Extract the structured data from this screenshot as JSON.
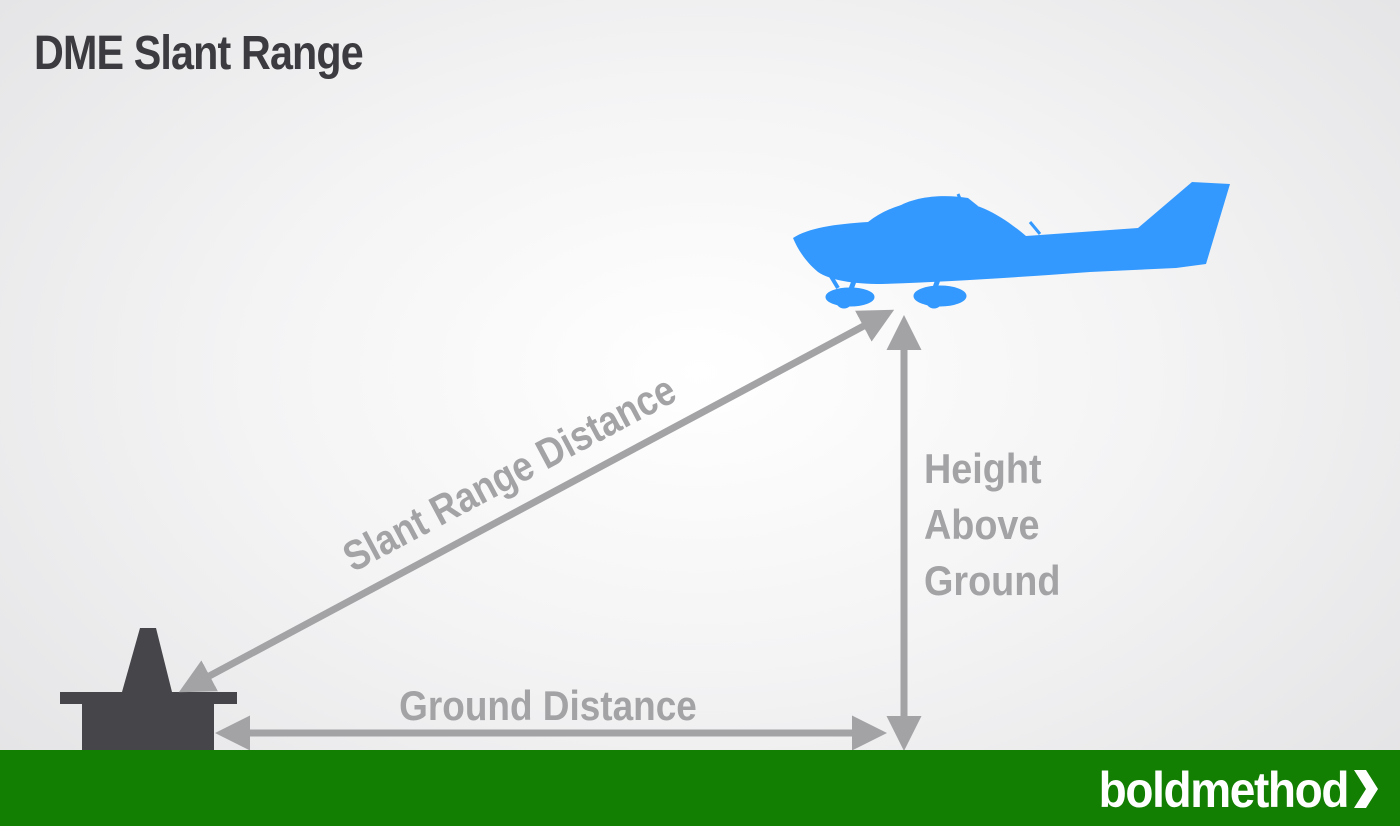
{
  "title": "DME Slant Range",
  "labels": {
    "slant_range": "Slant Range Distance",
    "height_line1": "Height",
    "height_line2": "Above",
    "height_line3": "Ground",
    "ground_distance": "Ground Distance"
  },
  "brand": "boldmethod",
  "icons": {
    "aircraft": "airplane-icon",
    "station": "dme-station-icon",
    "brand_mark": "chevron-right-icon"
  },
  "colors": {
    "aircraft": "#3399ff",
    "station": "#45454a",
    "arrows": "#a3a3a6",
    "ground": "#137f02",
    "title": "#3b3b40"
  }
}
